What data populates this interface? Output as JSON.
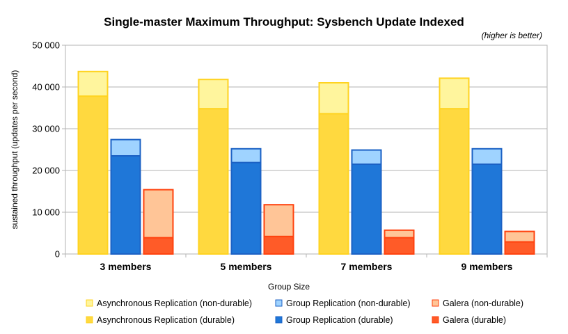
{
  "chart_data": {
    "type": "bar",
    "title": "Single-master Maximum Throughput: Sysbench Update Indexed",
    "annotation": "(higher is better)",
    "xlabel": "Group Size",
    "ylabel": "sustained throughput (updates per second)",
    "ylim": [
      0,
      50000
    ],
    "yticks": [
      0,
      10000,
      20000,
      30000,
      40000,
      50000
    ],
    "ytick_labels": [
      "0",
      "10 000",
      "20 000",
      "30 000",
      "40 000",
      "50 000"
    ],
    "grid": true,
    "legend_position": "bottom",
    "categories": [
      "3 members",
      "5 members",
      "7 members",
      "9 members"
    ],
    "series": [
      {
        "name": "Asynchronous Replication (non-durable)",
        "group": "async",
        "color": "#fff59d",
        "border": "#ffd320",
        "values": [
          43700,
          41800,
          41000,
          42100
        ]
      },
      {
        "name": "Asynchronous Replication (durable)",
        "group": "async",
        "color": "#ffd93f",
        "border": "#ffd320",
        "values": [
          37800,
          34800,
          33600,
          34800
        ]
      },
      {
        "name": "Group Replication (non-durable)",
        "group": "gr",
        "color": "#9fd3ff",
        "border": "#1b61c4",
        "values": [
          27400,
          25200,
          24900,
          25200
        ]
      },
      {
        "name": "Group Replication (durable)",
        "group": "gr",
        "color": "#1f77d8",
        "border": "#1b61c4",
        "values": [
          23500,
          21900,
          21500,
          21500
        ]
      },
      {
        "name": "Galera  (non-durable)",
        "group": "galera",
        "color": "#ffc597",
        "border": "#ff420e",
        "values": [
          15400,
          11800,
          5700,
          5400
        ]
      },
      {
        "name": "Galera  (durable)",
        "group": "galera",
        "color": "#ff5b28",
        "border": "#ff420e",
        "values": [
          3900,
          4200,
          3900,
          2900
        ]
      }
    ]
  }
}
